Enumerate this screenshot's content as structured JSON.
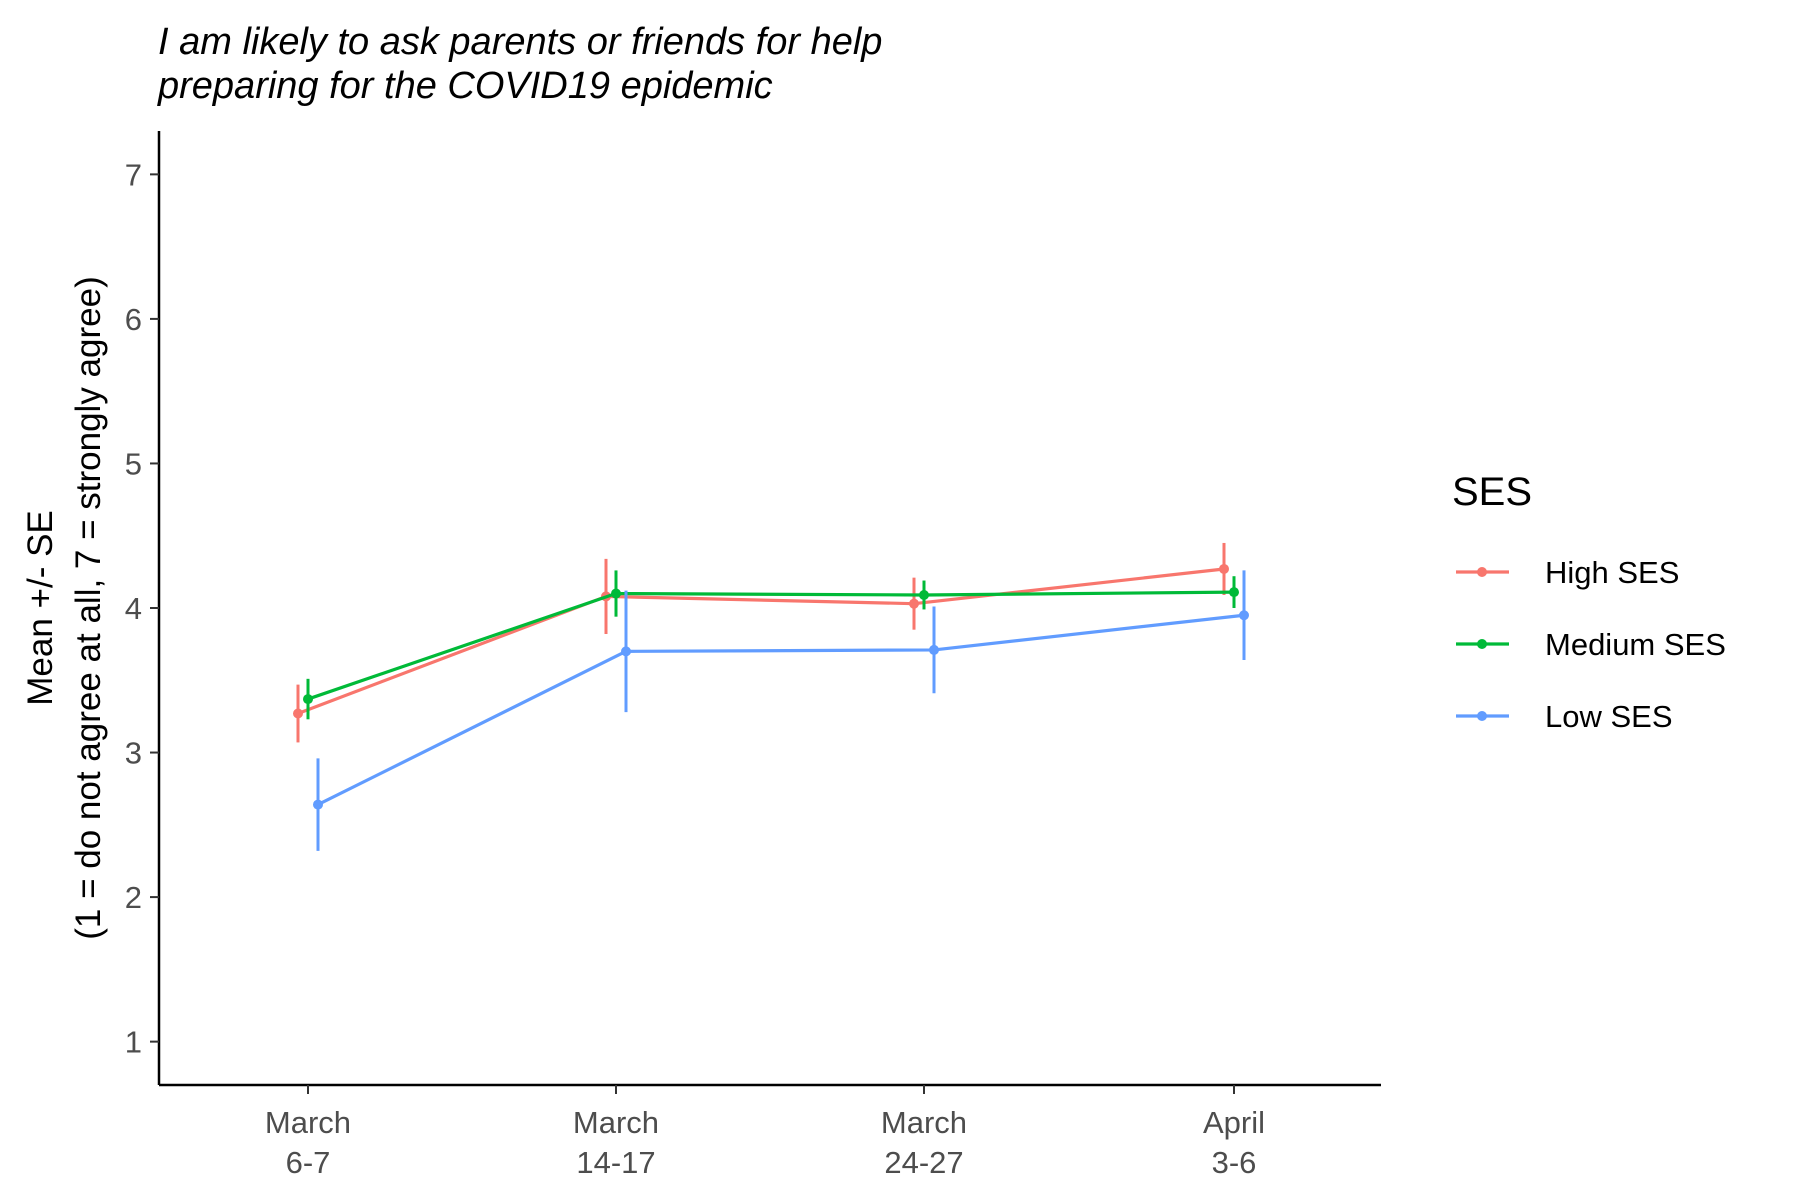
{
  "chart_data": {
    "type": "line",
    "title_lines": [
      "I am likely to ask parents or friends for help",
      "preparing for the COVID19 epidemic"
    ],
    "ylabel_lines": [
      "Mean +/- SE",
      "(1 = do not agree at all, 7 = strongly agree)"
    ],
    "xlabel": "",
    "categories": [
      [
        "March",
        "6-7"
      ],
      [
        "March",
        "14-17"
      ],
      [
        "March",
        "24-27"
      ],
      [
        "April",
        "3-6"
      ]
    ],
    "yticks": [
      1,
      2,
      3,
      4,
      5,
      6,
      7
    ],
    "ylim": [
      0.7,
      7.3
    ],
    "grid": false,
    "legend": {
      "title": "SES",
      "position": "right"
    },
    "series": [
      {
        "name": "High SES",
        "color": "#F8766D",
        "values": [
          3.27,
          4.08,
          4.03,
          4.27
        ],
        "se": [
          0.2,
          0.26,
          0.18,
          0.18
        ]
      },
      {
        "name": "Medium SES",
        "color": "#00BA38",
        "values": [
          3.37,
          4.1,
          4.09,
          4.11
        ],
        "se": [
          0.14,
          0.16,
          0.1,
          0.11
        ]
      },
      {
        "name": "Low SES",
        "color": "#619CFF",
        "values": [
          2.64,
          3.7,
          3.71,
          3.95
        ],
        "se": [
          0.32,
          0.42,
          0.3,
          0.31
        ]
      }
    ]
  }
}
